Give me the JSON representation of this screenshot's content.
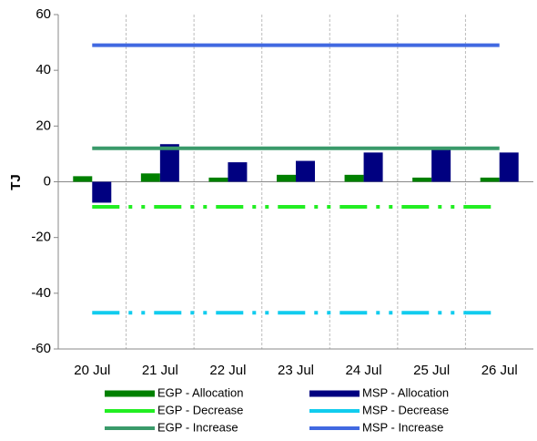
{
  "chart_data": {
    "type": "bar",
    "y_label": "TJ",
    "categories": [
      "20 Jul",
      "21 Jul",
      "22 Jul",
      "23 Jul",
      "24 Jul",
      "25 Jul",
      "26 Jul"
    ],
    "ylim": [
      -60,
      60
    ],
    "yticks": [
      -60,
      -40,
      -20,
      0,
      20,
      40,
      60
    ],
    "grid": true,
    "series": [
      {
        "name": "EGP - Allocation",
        "kind": "bar",
        "color": "#008000",
        "values": [
          2,
          3,
          1.5,
          2.5,
          2.5,
          1.5,
          1.5
        ]
      },
      {
        "name": "MSP - Allocation",
        "kind": "bar",
        "color": "#000080",
        "values": [
          -7.5,
          13.5,
          7,
          7.5,
          10.5,
          12,
          10.5
        ]
      },
      {
        "name": "EGP - Decrease",
        "kind": "line",
        "style": "dash-dot",
        "color": "#22ee22",
        "values": [
          -9,
          -9,
          -9,
          -9,
          -9,
          -9,
          -9
        ]
      },
      {
        "name": "MSP - Decrease",
        "kind": "line",
        "style": "dash-dot",
        "color": "#11ccee",
        "values": [
          -47,
          -47,
          -47,
          -47,
          -47,
          -47,
          -47
        ]
      },
      {
        "name": "EGP - Increase",
        "kind": "line",
        "style": "solid",
        "color": "#3a9a6a",
        "values": [
          12,
          12,
          12,
          12,
          12,
          12,
          12
        ]
      },
      {
        "name": "MSP - Increase",
        "kind": "line",
        "style": "solid",
        "color": "#4169e1",
        "values": [
          49,
          49,
          49,
          49,
          49,
          49,
          49
        ]
      }
    ]
  }
}
